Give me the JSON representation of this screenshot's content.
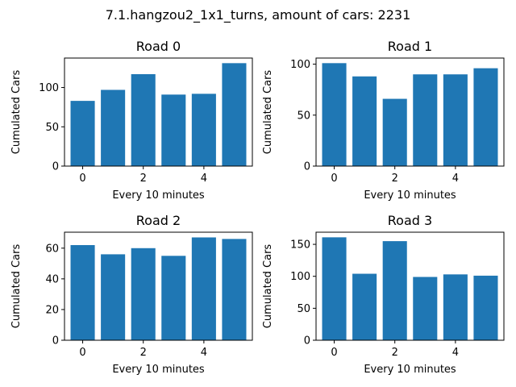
{
  "figure": {
    "title": "7.1.hangzou2_1x1_turns, amount of cars: 2231"
  },
  "chart_data": [
    {
      "type": "bar",
      "title": "Road 0",
      "xlabel": "Every 10 minutes",
      "ylabel": "Cumulated Cars",
      "x": [
        0,
        1,
        2,
        3,
        4,
        5
      ],
      "values": [
        83,
        97,
        117,
        91,
        92,
        131
      ],
      "xlim": [
        -0.6,
        5.6
      ],
      "ylim": [
        0,
        137.5
      ],
      "xticks": [
        0,
        2,
        4
      ],
      "yticks": [
        0,
        50,
        100
      ],
      "color": "#1f77b4"
    },
    {
      "type": "bar",
      "title": "Road 1",
      "xlabel": "Every 10 minutes",
      "ylabel": "Cumulated Cars",
      "x": [
        0,
        1,
        2,
        3,
        4,
        5
      ],
      "values": [
        101,
        88,
        66,
        90,
        90,
        96
      ],
      "xlim": [
        -0.6,
        5.6
      ],
      "ylim": [
        0,
        106
      ],
      "xticks": [
        0,
        2,
        4
      ],
      "yticks": [
        0,
        50,
        100
      ],
      "color": "#1f77b4"
    },
    {
      "type": "bar",
      "title": "Road 2",
      "xlabel": "Every 10 minutes",
      "ylabel": "Cumulated Cars",
      "x": [
        0,
        1,
        2,
        3,
        4,
        5
      ],
      "values": [
        62,
        56,
        60,
        55,
        67,
        66
      ],
      "xlim": [
        -0.6,
        5.6
      ],
      "ylim": [
        0,
        70.4
      ],
      "xticks": [
        0,
        2,
        4
      ],
      "yticks": [
        0,
        20,
        40,
        60
      ],
      "color": "#1f77b4"
    },
    {
      "type": "bar",
      "title": "Road 3",
      "xlabel": "Every 10 minutes",
      "ylabel": "Cumulated Cars",
      "x": [
        0,
        1,
        2,
        3,
        4,
        5
      ],
      "values": [
        161,
        104,
        155,
        99,
        103,
        101
      ],
      "xlim": [
        -0.6,
        5.6
      ],
      "ylim": [
        0,
        169
      ],
      "xticks": [
        0,
        2,
        4
      ],
      "yticks": [
        0,
        50,
        100,
        150
      ],
      "color": "#1f77b4"
    }
  ]
}
